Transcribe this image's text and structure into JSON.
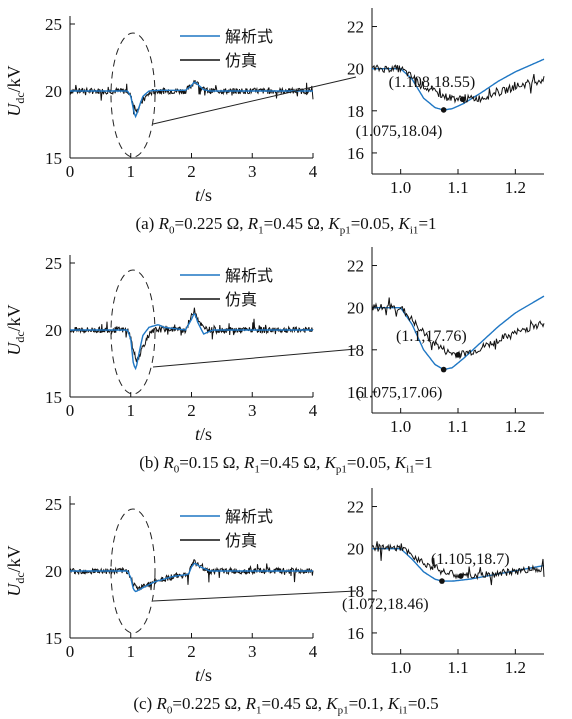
{
  "legend": {
    "analytic": "解析式",
    "simulation": "仿真"
  },
  "colors": {
    "analytic": "#1f77c4",
    "simulation": "#111111",
    "axis": "#111111"
  },
  "chart_data": [
    {
      "type": "line",
      "panel": "a-main",
      "xlabel": "t/s",
      "ylabel": "Udc/kV",
      "xlim": [
        0,
        4
      ],
      "ylim": [
        15,
        25
      ],
      "xticks": [
        "0",
        "1",
        "2",
        "3",
        "4"
      ],
      "yticks": [
        "15",
        "20",
        "25"
      ],
      "legend_position": "top-right",
      "series": [
        {
          "name": "解析式",
          "x": [
            0,
            0.95,
            1.0,
            1.05,
            1.075,
            1.1,
            1.15,
            1.2,
            1.3,
            1.45,
            1.9,
            2.0,
            2.05,
            2.1,
            2.2,
            2.3,
            4.0
          ],
          "y": [
            20,
            20,
            19.6,
            18.5,
            18.04,
            18.3,
            19.0,
            19.6,
            20.0,
            20.05,
            20.05,
            20.4,
            20.7,
            20.5,
            20.1,
            20.0,
            20.0
          ]
        },
        {
          "name": "仿真",
          "x": [
            0,
            0.95,
            1.0,
            1.05,
            1.108,
            1.15,
            1.2,
            1.3,
            1.4,
            1.9,
            2.0,
            2.05,
            2.1,
            2.2,
            2.3,
            4.0
          ],
          "y": [
            20,
            20,
            19.6,
            18.9,
            18.55,
            18.9,
            19.3,
            19.8,
            20.0,
            20.0,
            20.4,
            20.8,
            20.5,
            20.1,
            20.0,
            20.0
          ]
        }
      ]
    },
    {
      "type": "line",
      "panel": "a-zoom",
      "xlim": [
        0.95,
        1.25
      ],
      "ylim": [
        15,
        22.5
      ],
      "xticks": [
        "1.0",
        "1.1",
        "1.2"
      ],
      "yticks": [
        "16",
        "18",
        "20",
        "22"
      ],
      "series": [
        {
          "name": "解析式",
          "x": [
            0.95,
            1.0,
            1.02,
            1.04,
            1.06,
            1.075,
            1.09,
            1.11,
            1.14,
            1.17,
            1.2,
            1.25
          ],
          "y": [
            20,
            20,
            19.5,
            18.6,
            18.15,
            18.04,
            18.1,
            18.35,
            18.85,
            19.4,
            19.85,
            20.45
          ]
        },
        {
          "name": "仿真",
          "x": [
            0.95,
            1.0,
            1.02,
            1.05,
            1.08,
            1.108,
            1.14,
            1.17,
            1.2,
            1.25
          ],
          "y": [
            20,
            20,
            19.6,
            19.0,
            18.65,
            18.55,
            18.6,
            18.85,
            19.15,
            19.5
          ]
        }
      ],
      "points": [
        {
          "label": "(1.108,18.55)",
          "x": 1.108,
          "y": 18.55
        },
        {
          "label": "(1.075,18.04)",
          "x": 1.075,
          "y": 18.04
        }
      ]
    },
    {
      "type": "line",
      "panel": "b-main",
      "xlabel": "t/s",
      "ylabel": "Udc/kV",
      "xlim": [
        0,
        4
      ],
      "ylim": [
        15,
        25
      ],
      "xticks": [
        "0",
        "1",
        "2",
        "3",
        "4"
      ],
      "yticks": [
        "15",
        "20",
        "25"
      ],
      "legend_position": "top-right",
      "series": [
        {
          "name": "解析式",
          "x": [
            0,
            0.95,
            1.0,
            1.04,
            1.075,
            1.1,
            1.15,
            1.2,
            1.3,
            1.45,
            1.55,
            1.9,
            2.0,
            2.05,
            2.1,
            2.2,
            2.35,
            4.0
          ],
          "y": [
            20,
            20,
            19.3,
            17.6,
            17.06,
            17.4,
            18.6,
            19.6,
            20.2,
            20.4,
            20.2,
            20.0,
            20.8,
            21.3,
            20.6,
            19.7,
            20.0,
            20.0
          ]
        },
        {
          "name": "仿真",
          "x": [
            0,
            0.95,
            1.0,
            1.05,
            1.1,
            1.15,
            1.2,
            1.3,
            1.4,
            1.6,
            1.9,
            2.0,
            2.05,
            2.1,
            2.2,
            2.35,
            4.0
          ],
          "y": [
            20,
            20,
            19.4,
            18.3,
            17.76,
            18.2,
            18.8,
            19.6,
            20.0,
            20.1,
            20.0,
            21.0,
            21.6,
            20.9,
            20.1,
            20.0,
            20.0
          ]
        }
      ]
    },
    {
      "type": "line",
      "panel": "b-zoom",
      "xlim": [
        0.95,
        1.25
      ],
      "ylim": [
        15,
        22.5
      ],
      "xticks": [
        "1.0",
        "1.1",
        "1.2"
      ],
      "yticks": [
        "16",
        "18",
        "20",
        "22"
      ],
      "series": [
        {
          "name": "解析式",
          "x": [
            0.95,
            1.0,
            1.02,
            1.04,
            1.06,
            1.075,
            1.09,
            1.11,
            1.14,
            1.17,
            1.2,
            1.25
          ],
          "y": [
            20,
            20,
            19.2,
            18.0,
            17.3,
            17.06,
            17.15,
            17.6,
            18.35,
            19.1,
            19.75,
            20.55
          ]
        },
        {
          "name": "仿真",
          "x": [
            0.95,
            1.0,
            1.02,
            1.05,
            1.08,
            1.1,
            1.13,
            1.16,
            1.2,
            1.25
          ],
          "y": [
            20,
            20,
            19.4,
            18.5,
            17.9,
            17.76,
            17.95,
            18.35,
            18.8,
            19.3
          ]
        }
      ],
      "points": [
        {
          "label": "(1.1,17.76)",
          "x": 1.1,
          "y": 17.76
        },
        {
          "label": "(1.075,17.06)",
          "x": 1.075,
          "y": 17.06
        }
      ]
    },
    {
      "type": "line",
      "panel": "c-main",
      "xlabel": "t/s",
      "ylabel": "Udc/kV",
      "xlim": [
        0,
        4
      ],
      "ylim": [
        15,
        25
      ],
      "xticks": [
        "0",
        "1",
        "2",
        "3",
        "4"
      ],
      "yticks": [
        "15",
        "20",
        "25"
      ],
      "legend_position": "top-right",
      "series": [
        {
          "name": "解析式",
          "x": [
            0,
            0.95,
            1.0,
            1.04,
            1.072,
            1.1,
            1.2,
            1.4,
            1.7,
            1.95,
            2.0,
            2.05,
            2.15,
            2.3,
            4.0
          ],
          "y": [
            20,
            20,
            19.5,
            18.7,
            18.46,
            18.5,
            18.75,
            19.2,
            19.6,
            19.75,
            20.3,
            20.6,
            20.3,
            20.0,
            20.0
          ]
        },
        {
          "name": "仿真",
          "x": [
            0,
            0.95,
            1.0,
            1.05,
            1.105,
            1.2,
            1.4,
            1.7,
            1.95,
            2.0,
            2.05,
            2.15,
            2.3,
            4.0
          ],
          "y": [
            20,
            20,
            19.6,
            19.0,
            18.7,
            18.8,
            19.25,
            19.6,
            19.75,
            20.4,
            20.7,
            20.3,
            20.0,
            20.0
          ]
        }
      ]
    },
    {
      "type": "line",
      "panel": "c-zoom",
      "xlim": [
        0.95,
        1.25
      ],
      "ylim": [
        15,
        22.5
      ],
      "xticks": [
        "1.0",
        "1.1",
        "1.2"
      ],
      "yticks": [
        "16",
        "18",
        "20",
        "22"
      ],
      "series": [
        {
          "name": "解析式",
          "x": [
            0.95,
            1.0,
            1.02,
            1.04,
            1.06,
            1.072,
            1.09,
            1.12,
            1.16,
            1.2,
            1.25
          ],
          "y": [
            20,
            20,
            19.5,
            18.9,
            18.55,
            18.46,
            18.46,
            18.55,
            18.75,
            18.95,
            19.2
          ]
        },
        {
          "name": "仿真",
          "x": [
            0.95,
            1.0,
            1.02,
            1.05,
            1.08,
            1.105,
            1.14,
            1.18,
            1.22,
            1.25
          ],
          "y": [
            20,
            20,
            19.7,
            19.2,
            18.85,
            18.7,
            18.72,
            18.85,
            19.0,
            19.1
          ]
        }
      ],
      "points": [
        {
          "label": "(1.105,18.7)",
          "x": 1.105,
          "y": 18.7
        },
        {
          "label": "(1.072,18.46)",
          "x": 1.072,
          "y": 18.46
        }
      ]
    }
  ],
  "captions": {
    "a": {
      "prefix": "(a) ",
      "r0": "0.225 Ω",
      "r1": "0.45 Ω",
      "kp1": "0.05",
      "ki1": "1"
    },
    "b": {
      "prefix": "(b) ",
      "r0": "0.15 Ω",
      "r1": "0.45 Ω",
      "kp1": "0.05",
      "ki1": "1"
    },
    "c": {
      "prefix": "(c) ",
      "r0": "0.225 Ω",
      "r1": "0.45 Ω",
      "kp1": "0.1",
      "ki1": "0.5"
    }
  }
}
